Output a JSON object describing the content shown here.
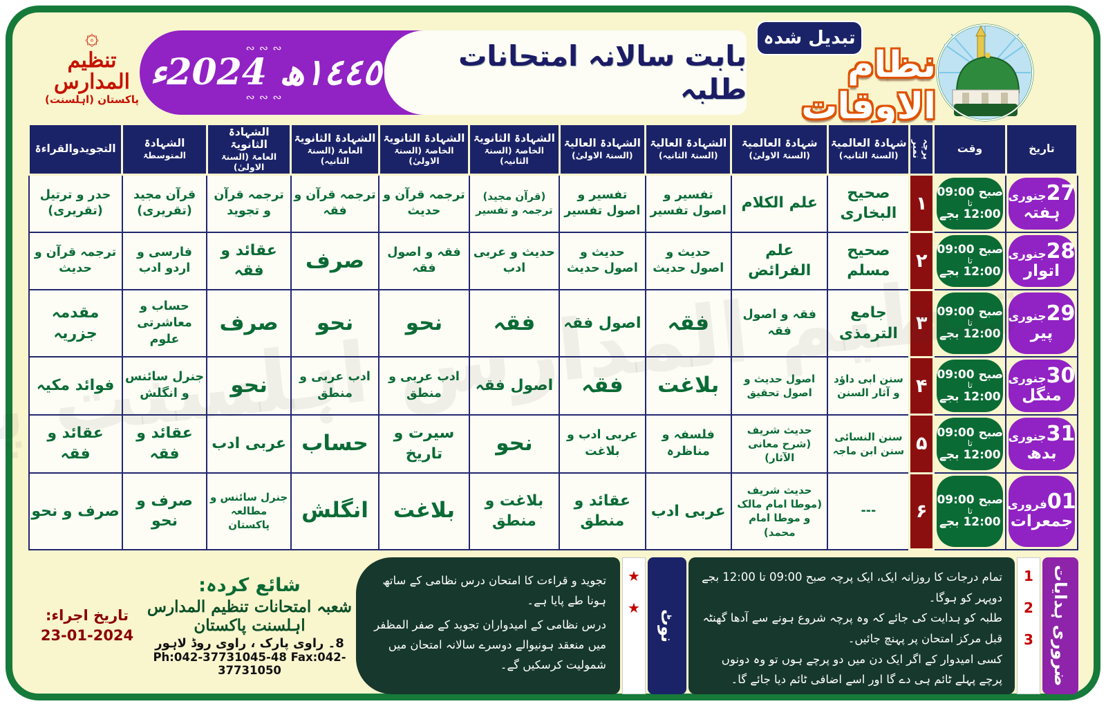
{
  "header": {
    "changed_badge": "تبدیل شدہ",
    "main_title": "نظام الاوقات",
    "subtitle": "بابت سالانہ امتحانات طلبہ",
    "year_hijri": "١٤٤٥ھ",
    "year_greg": "2024ء",
    "logo_line1": "تنظیم المدارس",
    "logo_line2": "(اہلسنت) پاکستان",
    "logo_icon": "calligraphy-emblem",
    "mosque_icon": "masjid-nabawi-roundel"
  },
  "colors": {
    "frame_green": "#167a3a",
    "cream": "#f9f5cd",
    "navy": "#1b2368",
    "purple": "#9122c4",
    "green": "#0b6b35",
    "maroon": "#8c0f10",
    "subject_green": "#0a6b35",
    "title_orange": "#df5200",
    "dark_note": "#17382c",
    "red_accent": "#c40000"
  },
  "table": {
    "columns": [
      {
        "label": "تاریخ",
        "sub": ""
      },
      {
        "label": "وقت",
        "sub": ""
      },
      {
        "label": "پرچہ نمبر",
        "sub": ""
      },
      {
        "label": "شہادۃ العالمیۃ",
        "sub": "(السنۃ الثانیہ)"
      },
      {
        "label": "شہادۃ العالمیۃ",
        "sub": "(السنۃ الاولیٰ)"
      },
      {
        "label": "الشہادۃ العالیۃ",
        "sub": "(السنۃ الثانیہ)"
      },
      {
        "label": "الشہادۃ العالیۃ",
        "sub": "(السنۃ الاولیٰ)"
      },
      {
        "label": "الشہادۃ الثانویۃ",
        "sub": "الخاصۃ (السنۃ الثانیہ)"
      },
      {
        "label": "الشہادۃ الثانویۃ",
        "sub": "الخاصۃ (السنۃ الاولیٰ)"
      },
      {
        "label": "الشہادۃ الثانویۃ",
        "sub": "العامۃ (السنۃ الثانیہ)"
      },
      {
        "label": "الشہادۃ الثانویۃ",
        "sub": "العامۃ (السنۃ الاولیٰ)"
      },
      {
        "label": "الشہادۃ",
        "sub": "المتوسطۃ"
      },
      {
        "label": "التجویدوالقراءۃ",
        "sub": ""
      }
    ],
    "time_cell": {
      "line1": "صبح 09:00",
      "line2": "تا",
      "line3": "12:00 بجے"
    },
    "rows": [
      {
        "date_num": "27",
        "date_month": "جنوری",
        "date_day": "ہفتہ",
        "paper": "۱",
        "subjects": [
          "صحیح البخاری",
          "علم الکلام",
          "تفسیر و اصول تفسیر",
          "تفسیر و اصول تفسیر",
          "(قرآن مجید) ترجمہ و تفسیر",
          "ترجمہ قرآن و حدیث",
          "ترجمہ قرآن و فقہ",
          "ترجمہ قرآن و تجوید",
          "قرآن مجید (تقریری)",
          "حدر و ترتیل (تقریری)"
        ]
      },
      {
        "date_num": "28",
        "date_month": "جنوری",
        "date_day": "اتوار",
        "paper": "۲",
        "subjects": [
          "صحیح مسلم",
          "علم الفرائض",
          "حدیث و اصول حدیث",
          "حدیث و اصول حدیث",
          "حدیث و عربی ادب",
          "فقہ و اصول فقہ",
          "صرف",
          "عقائد و فقہ",
          "فارسی و اردو ادب",
          "ترجمہ قرآن و حدیث"
        ]
      },
      {
        "date_num": "29",
        "date_month": "جنوری",
        "date_day": "پیر",
        "paper": "۳",
        "subjects": [
          "جامع الترمذی",
          "فقہ و اصول فقہ",
          "فقہ",
          "اصول فقہ",
          "فقہ",
          "نحو",
          "نحو",
          "صرف",
          "حساب و معاشرتی علوم",
          "مقدمہ جزریہ"
        ]
      },
      {
        "date_num": "30",
        "date_month": "جنوری",
        "date_day": "منگل",
        "paper": "۴",
        "subjects": [
          "سنن ابی داؤد و آثار السنن",
          "اصول حدیث و اصول تحقیق",
          "بلاغت",
          "فقہ",
          "اصول فقہ",
          "ادب عربی و منطق",
          "ادب عربی و منطق",
          "نحو",
          "جنرل سائنس و انگلش",
          "فوائد مکیہ"
        ]
      },
      {
        "date_num": "31",
        "date_month": "جنوری",
        "date_day": "بدھ",
        "paper": "۵",
        "subjects": [
          "سنن النسائی سنن ابن ماجہ",
          "حدیث شریف (شرح معانی الآثار)",
          "فلسفہ و مناظرہ",
          "عربی ادب و بلاغت",
          "نحو",
          "سیرت و تاریخ",
          "حساب",
          "عربی ادب",
          "عقائد و فقہ",
          "عقائد و فقہ"
        ]
      },
      {
        "date_num": "01",
        "date_month": "فروری",
        "date_day": "جمعرات",
        "paper": "۶",
        "subjects": [
          "---",
          "حدیث شریف (موطا امام مالک و موطا امام محمد)",
          "عربی ادب",
          "عقائد و منطق",
          "بلاغت و منطق",
          "بلاغت",
          "انگلش",
          "جنرل سائنس و مطالعہ پاکستان",
          "صرف و نحو",
          "صرف و نحو"
        ]
      }
    ]
  },
  "watermark": "تنظیم المدارس اہلسنت پاکستان",
  "footer": {
    "issue_label": "تاریخ اجراء:",
    "issue_date": "23-01-2024",
    "published_label": "شائع کردہ:",
    "publisher": "شعبہ امتحانات تنظیم المدارس اہلسنت پاکستان",
    "address": "8۔ راوی پارک ، راوی روڈ لاہور",
    "phone": "Ph:042-37731045-48 Fax:042-37731050",
    "note_label": "نوٹ",
    "note_bullet": "★",
    "notes": [
      "تجوید و قراءت کا امتحان درس نظامی کے ساتھ ہونا طے پایا ہے۔",
      "درس نظامی کے امیدواران تجوید کے صفر المظفر میں منعقد ہونیوالے دوسرے سالانہ امتحان میں شمولیت کرسکیں گے۔"
    ],
    "instructions_label": "ضروری ہدایات",
    "instructions": [
      {
        "num": "1",
        "text": "تمام درجات کا روزانہ ایک، ایک پرچہ صبح 09:00 تا 12:00 بجے دوپہر کو ہوگا۔"
      },
      {
        "num": "2",
        "text": "طلبہ کو ہدایت کی جائے کہ وہ پرچہ شروع ہونے سے آدھا گھنٹہ قبل مرکز امتحان پر پہنچ جائیں۔"
      },
      {
        "num": "3",
        "text": "کسی امیدوار کے اگر ایک دن میں دو پرچے ہوں تو وہ دونوں پرچے پہلے ٹائم ہی دے گا اور اسے اضافی ٹائم دیا جائے گا۔"
      }
    ]
  }
}
